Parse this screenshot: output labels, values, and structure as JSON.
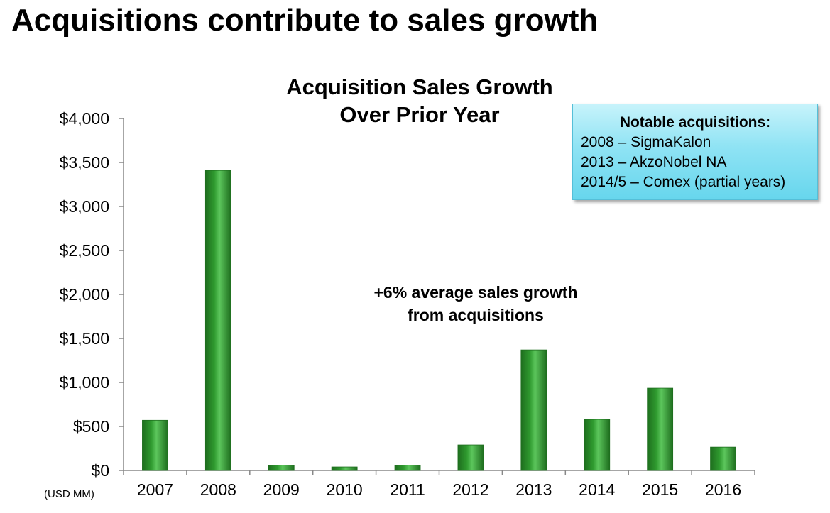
{
  "page": {
    "title": "Acquisitions contribute to sales growth"
  },
  "chart": {
    "title_line1": "Acquisition Sales Growth",
    "title_line2": "Over Prior Year",
    "annotation_line1": "+6% average sales growth",
    "annotation_line2": "from acquisitions"
  },
  "callout": {
    "title": "Notable acquisitions:",
    "items": [
      "2008 – SigmaKalon",
      "2013 – AkzoNobel NA",
      "2014/5 – Comex (partial years)"
    ]
  },
  "colors": {
    "bar_fill": "#2f9a2f",
    "bar_highlight": "#5cc65c",
    "bar_dark": "#1e6e1e",
    "callout_fill": "#8fe3f4",
    "axis": "#888888"
  },
  "chart_data": {
    "type": "bar",
    "title": "Acquisition Sales Growth Over Prior Year",
    "xlabel": "",
    "ylabel": "(USD MM)",
    "categories": [
      "2007",
      "2008",
      "2009",
      "2010",
      "2011",
      "2012",
      "2013",
      "2014",
      "2015",
      "2016"
    ],
    "values": [
      570,
      3410,
      60,
      40,
      60,
      290,
      1370,
      580,
      935,
      265
    ],
    "ylim": [
      0,
      4000
    ],
    "yticks": [
      0,
      500,
      1000,
      1500,
      2000,
      2500,
      3000,
      3500,
      4000
    ],
    "ytick_labels": [
      "$0",
      "$500",
      "$1,000",
      "$1,500",
      "$2,000",
      "$2,500",
      "$3,000",
      "$3,500",
      "$4,000"
    ],
    "grid": false,
    "legend": "none"
  }
}
